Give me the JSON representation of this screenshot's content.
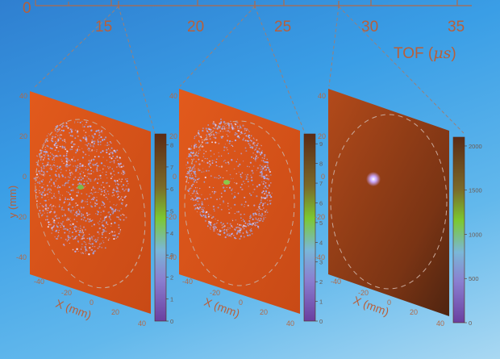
{
  "tof_axis": {
    "label": "TOF (",
    "label_unit": "μs",
    "label_close": ")",
    "zero_label": "0",
    "ticks": [
      "15",
      "20",
      "25",
      "30",
      "35"
    ]
  },
  "zoom_markers": [
    "15.6",
    "23.2",
    "27.9"
  ],
  "panels": [
    {
      "id": "panel-1",
      "colorbar_ticks": [
        "0",
        "1",
        "2",
        "3",
        "4",
        "5",
        "6",
        "7",
        "8"
      ],
      "colorbar_max": 8.5,
      "cloud": "large-diffuse"
    },
    {
      "id": "panel-2",
      "colorbar_ticks": [
        "0",
        "1",
        "2",
        "3",
        "4",
        "5",
        "6",
        "7",
        "8",
        "9"
      ],
      "colorbar_max": 9.5,
      "cloud": "ring"
    },
    {
      "id": "panel-3",
      "colorbar_ticks": [
        "0",
        "500",
        "1000",
        "1500",
        "2000"
      ],
      "colorbar_max": 2100,
      "cloud": "small-spot"
    }
  ],
  "y_axis": {
    "label": "y (mm)",
    "ticks": [
      "40",
      "20",
      "0",
      "-20",
      "-40"
    ]
  },
  "x_axis": {
    "label": "X (mm)",
    "ticks": [
      "-40",
      "-20",
      "0",
      "20",
      "40"
    ]
  },
  "colors": {
    "detector_face": "#d8541c",
    "colorbar_low": "#6a4aa8",
    "colorbar_mid": "#7bc832",
    "colorbar_high": "#5c2a14",
    "axis_text": "#b85f3a"
  }
}
